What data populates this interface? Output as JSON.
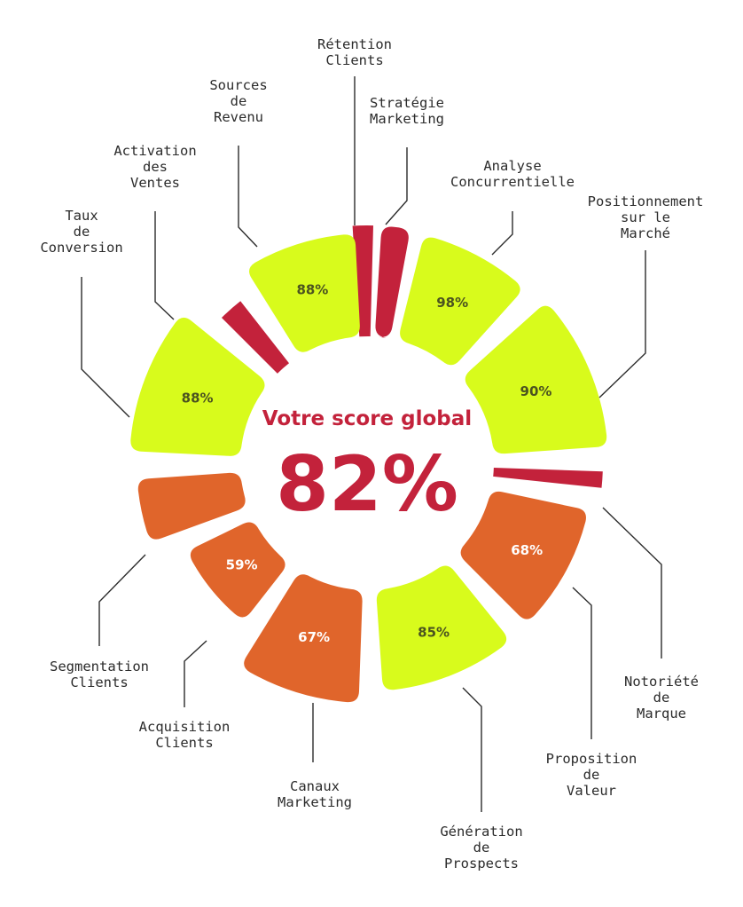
{
  "colors": {
    "high": "#d8fb1c",
    "mid": "#e0652b",
    "low": "#c3223b",
    "leader": "#2b2b2b",
    "accent": "#c3223b"
  },
  "center": {
    "title": "Votre score global",
    "score": "82%"
  },
  "chart_data": {
    "type": "pie",
    "series": [
      {
        "category": "Rétention Clients",
        "value": null,
        "level": "low",
        "label": ""
      },
      {
        "category": "Stratégie Marketing",
        "value": null,
        "level": "low",
        "label": ""
      },
      {
        "category": "Analyse Concurrentielle",
        "value": 98,
        "level": "high",
        "label": "98%"
      },
      {
        "category": "Positionnement sur le Marché",
        "value": 90,
        "level": "high",
        "label": "90%"
      },
      {
        "category": "Notoriété de Marque",
        "value": null,
        "level": "low",
        "label": ""
      },
      {
        "category": "Proposition de Valeur",
        "value": 68,
        "level": "mid",
        "label": "68%"
      },
      {
        "category": "Génération de Prospects",
        "value": 85,
        "level": "high",
        "label": "85%"
      },
      {
        "category": "Canaux Marketing",
        "value": 67,
        "level": "mid",
        "label": "67%"
      },
      {
        "category": "Acquisition Clients",
        "value": 59,
        "level": "mid",
        "label": "59%"
      },
      {
        "category": "Segmentation Clients",
        "value": null,
        "level": "mid",
        "label": ""
      },
      {
        "category": "Taux de Conversion",
        "value": 88,
        "level": "high",
        "label": "88%"
      },
      {
        "category": "Activation des Ventes",
        "value": null,
        "level": "low",
        "label": ""
      },
      {
        "category": "Sources de Revenu",
        "value": 88,
        "level": "high",
        "label": "88%"
      }
    ],
    "labels": [
      {
        "lines": [
          "Rétention",
          "Clients"
        ]
      },
      {
        "lines": [
          "Stratégie",
          "Marketing"
        ]
      },
      {
        "lines": [
          "Analyse",
          "Concurrentielle"
        ]
      },
      {
        "lines": [
          "Positionnement",
          "sur le",
          "Marché"
        ]
      },
      {
        "lines": [
          "Notoriété",
          "de",
          "Marque"
        ]
      },
      {
        "lines": [
          "Proposition",
          "de",
          "Valeur"
        ]
      },
      {
        "lines": [
          "Génération",
          "de",
          "Prospects"
        ]
      },
      {
        "lines": [
          "Canaux",
          "Marketing"
        ]
      },
      {
        "lines": [
          "Acquisition",
          "Clients"
        ]
      },
      {
        "lines": [
          "Segmentation",
          "Clients"
        ]
      },
      {
        "lines": [
          "Taux",
          "de",
          "Conversion"
        ]
      },
      {
        "lines": [
          "Activation",
          "des",
          "Ventes"
        ]
      },
      {
        "lines": [
          "Sources",
          "de",
          "Revenu"
        ]
      }
    ]
  }
}
